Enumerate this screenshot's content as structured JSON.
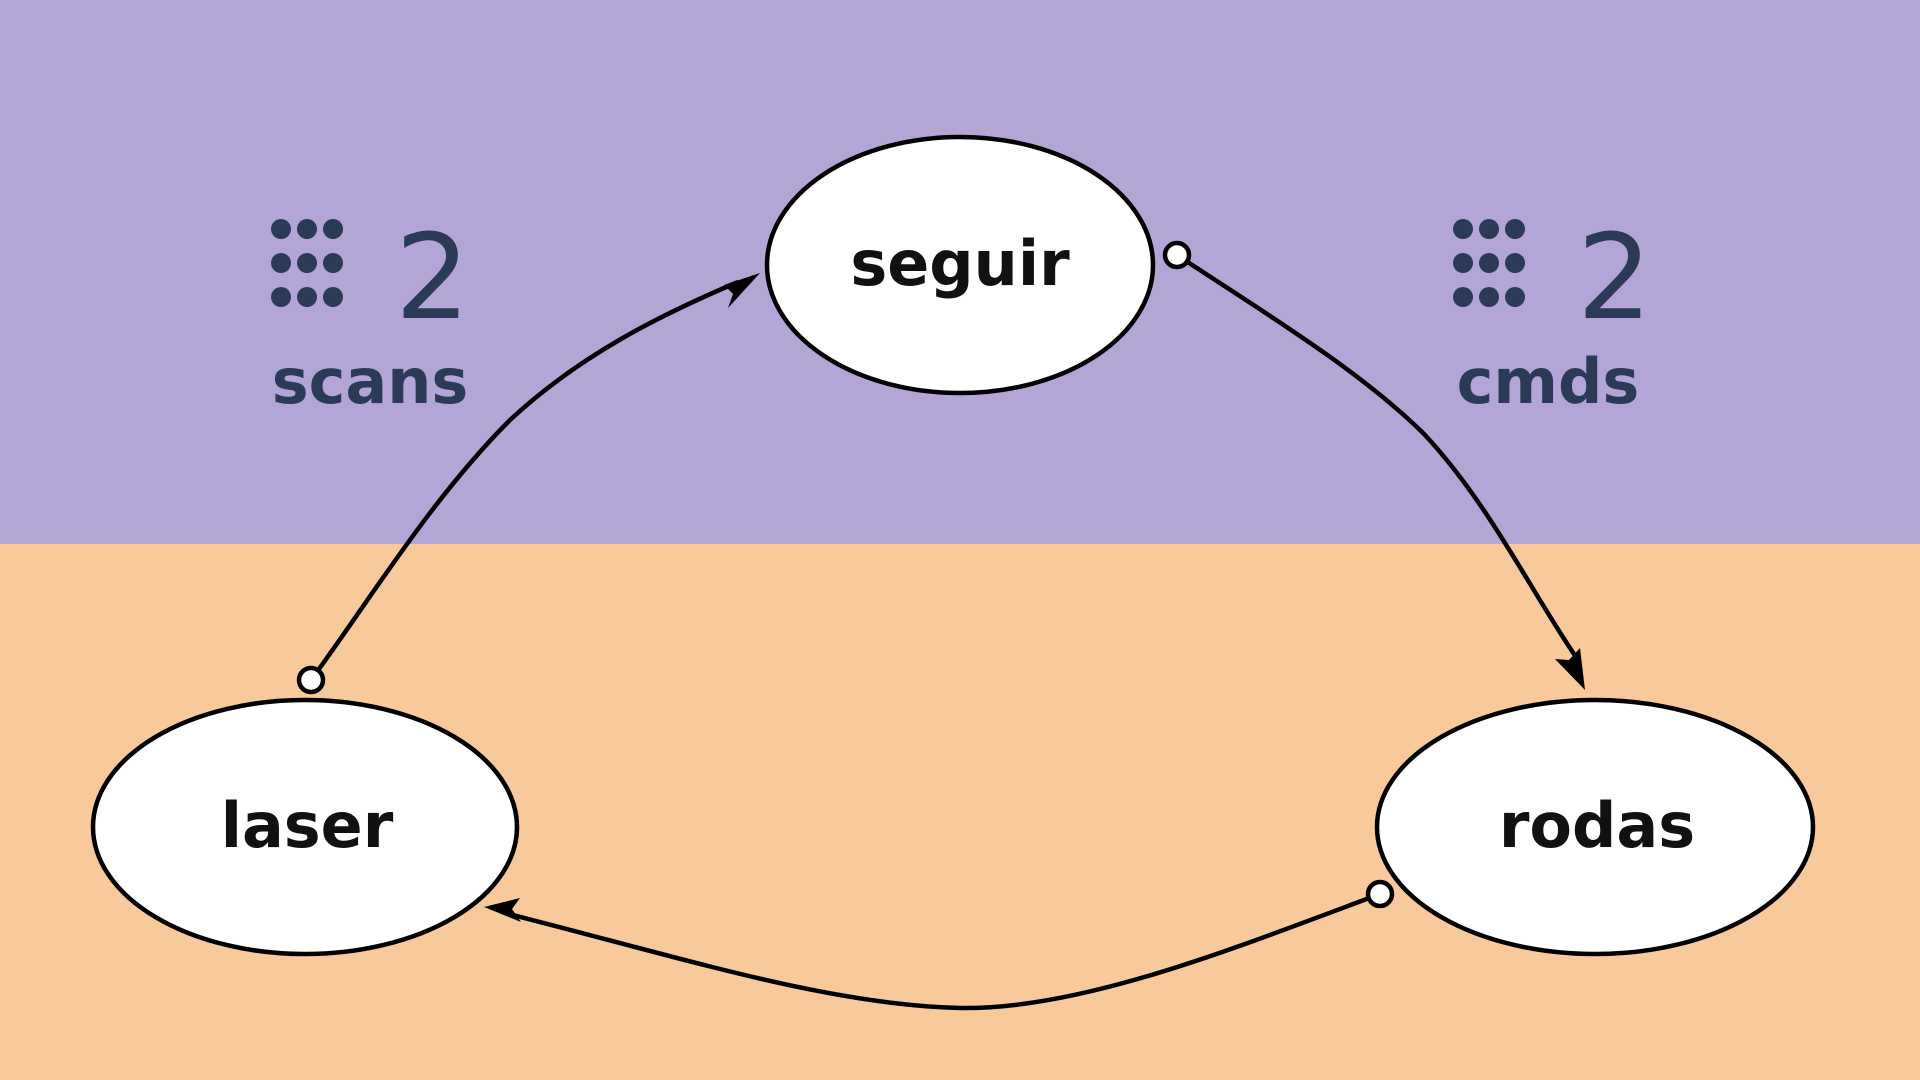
{
  "colors": {
    "top_band": "#b3a5d5",
    "bottom_band": "#f7c99b",
    "badge_text": "#2b3a55"
  },
  "nodes": {
    "seguir": "seguir",
    "laser": "laser",
    "rodas": "rodas"
  },
  "topics": {
    "scans": {
      "icon": "grid-dots-icon",
      "count": "2",
      "label": "scans"
    },
    "cmds": {
      "icon": "grid-dots-icon",
      "count": "2",
      "label": "cmds"
    }
  },
  "edges": [
    {
      "from": "laser",
      "to": "seguir"
    },
    {
      "from": "seguir",
      "to": "rodas"
    },
    {
      "from": "rodas",
      "to": "laser"
    }
  ]
}
